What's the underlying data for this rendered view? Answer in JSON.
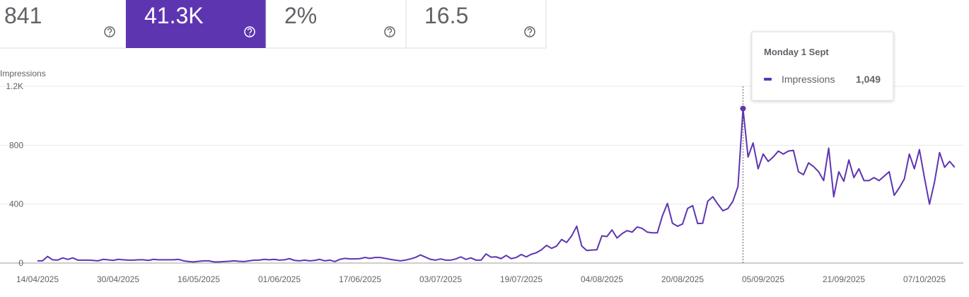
{
  "metrics": [
    "841",
    "41.3K",
    "2%",
    "16.5"
  ],
  "chart_data": {
    "type": "line",
    "y_label": "Impressions",
    "categories": [
      "14/04/2025",
      null,
      null,
      null,
      null,
      null,
      null,
      null,
      null,
      null,
      null,
      null,
      null,
      null,
      null,
      null,
      "30/04/2025",
      null,
      null,
      null,
      null,
      null,
      null,
      null,
      null,
      null,
      null,
      null,
      null,
      null,
      null,
      null,
      "16/05/2025",
      null,
      null,
      null,
      null,
      null,
      null,
      null,
      null,
      null,
      null,
      null,
      null,
      null,
      null,
      null,
      "01/06/2025",
      null,
      null,
      null,
      null,
      null,
      null,
      null,
      null,
      null,
      null,
      null,
      null,
      null,
      null,
      null,
      "17/06/2025",
      null,
      null,
      null,
      null,
      null,
      null,
      null,
      null,
      null,
      null,
      null,
      null,
      null,
      null,
      null,
      "03/07/2025",
      null,
      null,
      null,
      null,
      null,
      null,
      null,
      null,
      null,
      null,
      null,
      null,
      null,
      null,
      null,
      "19/07/2025",
      null,
      null,
      null,
      null,
      null,
      null,
      null,
      null,
      null,
      null,
      null,
      null,
      null,
      null,
      null,
      "04/08/2025",
      null,
      null,
      null,
      null,
      null,
      null,
      null,
      null,
      null,
      null,
      null,
      null,
      null,
      null,
      null,
      "20/08/2025",
      null,
      null,
      null,
      null,
      null,
      null,
      null,
      null,
      null,
      null,
      null,
      null,
      null,
      null,
      null,
      "05/09/2025",
      null,
      null,
      null,
      null,
      null,
      null,
      null,
      null,
      null,
      null,
      null,
      null,
      null,
      null,
      null,
      "21/09/2025",
      null,
      null,
      null,
      null,
      null,
      null,
      null,
      null,
      null,
      null,
      null,
      null,
      null,
      null,
      null,
      "07/10/2025",
      null,
      null,
      null,
      null,
      null,
      null
    ],
    "series": [
      {
        "name": "Impressions",
        "color": "#5e35b1",
        "values": [
          15,
          15,
          45,
          22,
          20,
          35,
          25,
          35,
          20,
          20,
          20,
          18,
          15,
          25,
          22,
          18,
          25,
          22,
          20,
          20,
          22,
          22,
          18,
          25,
          22,
          22,
          22,
          22,
          25,
          15,
          10,
          8,
          12,
          15,
          15,
          8,
          8,
          10,
          12,
          15,
          12,
          10,
          15,
          20,
          20,
          25,
          22,
          25,
          20,
          22,
          30,
          18,
          15,
          20,
          15,
          18,
          25,
          15,
          20,
          10,
          25,
          32,
          28,
          28,
          30,
          38,
          32,
          38,
          38,
          32,
          25,
          20,
          15,
          20,
          28,
          38,
          55,
          40,
          25,
          20,
          28,
          20,
          20,
          28,
          42,
          25,
          35,
          20,
          20,
          62,
          40,
          42,
          30,
          52,
          30,
          38,
          58,
          42,
          60,
          70,
          90,
          120,
          100,
          115,
          160,
          140,
          185,
          250,
          115,
          85,
          88,
          90,
          185,
          180,
          225,
          170,
          200,
          220,
          210,
          245,
          235,
          210,
          205,
          205,
          320,
          405,
          270,
          250,
          265,
          370,
          390,
          268,
          270,
          420,
          450,
          400,
          355,
          370,
          420,
          520,
          1049,
          720,
          815,
          640,
          740,
          690,
          720,
          760,
          740,
          760,
          765,
          620,
          600,
          680,
          655,
          620,
          560,
          780,
          450,
          620,
          555,
          700,
          580,
          640,
          560,
          560,
          580,
          560,
          590,
          620,
          460,
          510,
          570,
          740,
          640,
          770,
          580,
          400,
          550,
          750,
          650,
          690,
          650
        ]
      }
    ],
    "ylim": [
      0,
      1200
    ],
    "yticks": [
      0,
      400,
      800,
      {
        "value": 1200,
        "label": "1.2K"
      }
    ],
    "grid": true,
    "tooltip": {
      "index": 140,
      "title": "Monday 1 Sept",
      "value_label": "1,049"
    }
  }
}
